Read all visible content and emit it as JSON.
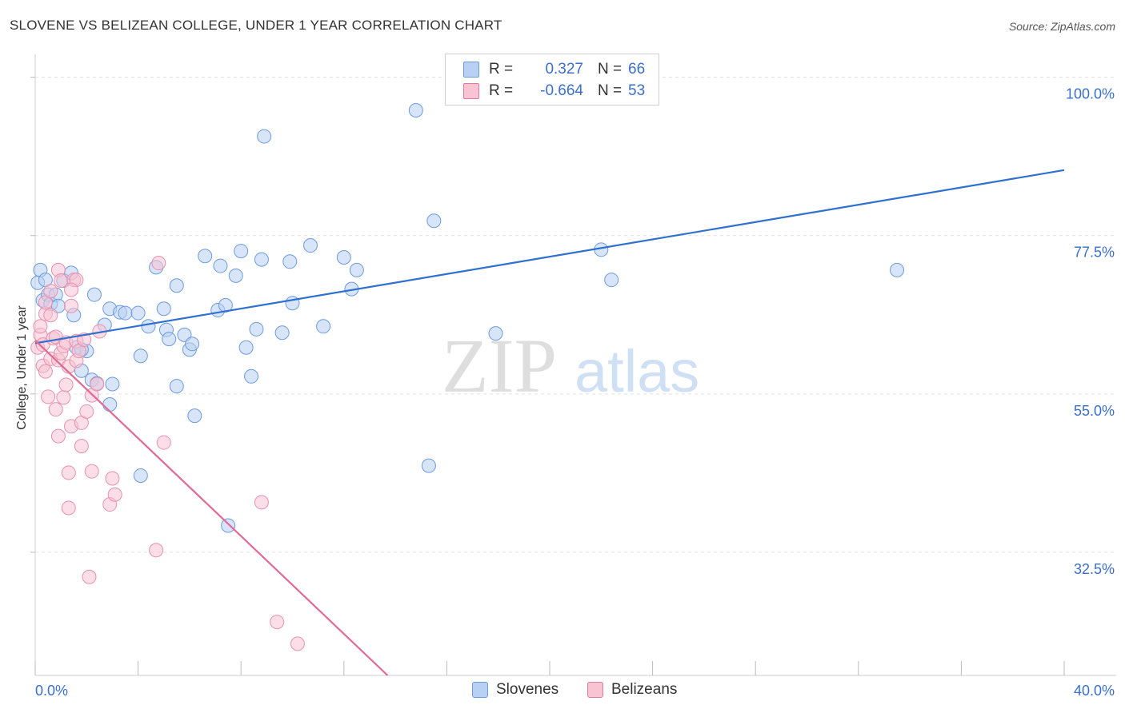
{
  "title": "SLOVENE VS BELIZEAN COLLEGE, UNDER 1 YEAR CORRELATION CHART",
  "source": "Source: ZipAtlas.com",
  "watermark": {
    "zip": "ZIP",
    "atlas": "atlas"
  },
  "legend": {
    "r_label": "R =",
    "n_label": "N =",
    "series": [
      {
        "r": "0.327",
        "n": "66",
        "color": "#6b9be0",
        "fill": "#b8d0f3"
      },
      {
        "r": "-0.664",
        "n": "53",
        "color": "#e07a9c",
        "fill": "#f8c3d3"
      }
    ]
  },
  "bottom_legend": [
    "Slovenes",
    "Belizeans"
  ],
  "chart_data": {
    "type": "scatter",
    "title": "SLOVENE VS BELIZEAN COLLEGE, UNDER 1 YEAR CORRELATION CHART",
    "xlabel": "",
    "ylabel": "College, Under 1 year",
    "xlim": [
      0,
      40
    ],
    "ylim": [
      15,
      102
    ],
    "x_tick_labels": [
      "0.0%",
      "40.0%"
    ],
    "y_ticks": [
      32.5,
      55.0,
      77.5,
      100.0
    ],
    "y_tick_labels": [
      "32.5%",
      "55.0%",
      "77.5%",
      "100.0%"
    ],
    "grid": true,
    "legend_position": "top-center",
    "series": [
      {
        "name": "Slovenes",
        "color": "#5b8fd8",
        "trend": {
          "x": [
            0,
            40
          ],
          "y": [
            62.2,
            86.8
          ]
        },
        "points": [
          [
            0.1,
            70.8
          ],
          [
            0.2,
            72.6
          ],
          [
            0.3,
            68.3
          ],
          [
            0.4,
            71.2
          ],
          [
            0.5,
            69.1
          ],
          [
            0.6,
            67.8
          ],
          [
            0.8,
            69.1
          ],
          [
            0.9,
            67.5
          ],
          [
            1.1,
            71.1
          ],
          [
            1.4,
            72.2
          ],
          [
            1.5,
            66.2
          ],
          [
            1.6,
            61.6
          ],
          [
            1.8,
            58.3
          ],
          [
            2.0,
            61.1
          ],
          [
            2.2,
            57.0
          ],
          [
            2.4,
            56.5
          ],
          [
            2.9,
            67.1
          ],
          [
            2.7,
            64.8
          ],
          [
            2.9,
            53.5
          ],
          [
            3.3,
            66.6
          ],
          [
            3.5,
            66.5
          ],
          [
            4.1,
            60.4
          ],
          [
            4.4,
            64.6
          ],
          [
            4.7,
            73.0
          ],
          [
            5.0,
            67.1
          ],
          [
            5.1,
            64.1
          ],
          [
            5.2,
            62.8
          ],
          [
            5.5,
            56.1
          ],
          [
            5.5,
            70.4
          ],
          [
            5.8,
            63.4
          ],
          [
            6.0,
            61.3
          ],
          [
            6.1,
            62.1
          ],
          [
            6.2,
            51.9
          ],
          [
            6.6,
            74.6
          ],
          [
            7.1,
            66.9
          ],
          [
            7.2,
            73.2
          ],
          [
            7.4,
            67.6
          ],
          [
            7.8,
            71.8
          ],
          [
            8.0,
            75.3
          ],
          [
            8.2,
            61.6
          ],
          [
            8.4,
            57.5
          ],
          [
            8.6,
            64.2
          ],
          [
            8.9,
            91.6
          ],
          [
            8.8,
            74.1
          ],
          [
            9.6,
            63.7
          ],
          [
            9.9,
            73.8
          ],
          [
            10.0,
            67.9
          ],
          [
            10.7,
            76.1
          ],
          [
            11.2,
            64.6
          ],
          [
            12.0,
            74.4
          ],
          [
            12.3,
            69.9
          ],
          [
            12.5,
            72.6
          ],
          [
            14.8,
            95.3
          ],
          [
            15.3,
            44.8
          ],
          [
            15.5,
            79.6
          ],
          [
            17.9,
            63.6
          ],
          [
            22.0,
            75.5
          ],
          [
            22.4,
            71.2
          ],
          [
            33.5,
            72.6
          ],
          [
            22.1,
            102.2
          ],
          [
            4.1,
            43.4
          ],
          [
            7.5,
            36.3
          ],
          [
            1.8,
            61.3
          ],
          [
            3.0,
            56.4
          ],
          [
            4.0,
            66.5
          ],
          [
            2.3,
            69.1
          ]
        ]
      },
      {
        "name": "Belizeans",
        "color": "#e8739a",
        "trend": {
          "x": [
            0,
            13.7
          ],
          "y": [
            62.6,
            15.0
          ]
        },
        "points": [
          [
            0.1,
            61.6
          ],
          [
            0.2,
            63.4
          ],
          [
            0.2,
            64.6
          ],
          [
            0.3,
            62.0
          ],
          [
            0.3,
            59.0
          ],
          [
            0.4,
            58.2
          ],
          [
            0.4,
            66.4
          ],
          [
            0.5,
            54.6
          ],
          [
            0.6,
            66.2
          ],
          [
            0.6,
            60.0
          ],
          [
            0.7,
            62.9
          ],
          [
            0.8,
            63.1
          ],
          [
            0.8,
            52.8
          ],
          [
            0.9,
            49.0
          ],
          [
            0.9,
            59.8
          ],
          [
            0.9,
            72.6
          ],
          [
            1.0,
            60.8
          ],
          [
            1.0,
            71.1
          ],
          [
            1.1,
            54.5
          ],
          [
            1.1,
            61.8
          ],
          [
            1.2,
            62.3
          ],
          [
            1.2,
            56.3
          ],
          [
            1.3,
            43.8
          ],
          [
            1.3,
            58.9
          ],
          [
            1.3,
            38.8
          ],
          [
            1.4,
            50.4
          ],
          [
            1.4,
            67.5
          ],
          [
            1.5,
            71.2
          ],
          [
            1.6,
            62.5
          ],
          [
            1.6,
            71.2
          ],
          [
            1.6,
            59.7
          ],
          [
            1.7,
            61.1
          ],
          [
            1.8,
            50.9
          ],
          [
            1.8,
            47.6
          ],
          [
            1.9,
            62.7
          ],
          [
            2.0,
            52.5
          ],
          [
            2.1,
            29.0
          ],
          [
            2.2,
            44.0
          ],
          [
            2.2,
            54.8
          ],
          [
            2.4,
            56.4
          ],
          [
            2.5,
            63.9
          ],
          [
            2.9,
            39.3
          ],
          [
            3.0,
            43.0
          ],
          [
            3.1,
            40.7
          ],
          [
            4.7,
            32.8
          ],
          [
            4.8,
            73.6
          ],
          [
            5.0,
            48.1
          ],
          [
            8.8,
            39.6
          ],
          [
            9.4,
            22.6
          ],
          [
            10.2,
            19.5
          ],
          [
            0.4,
            68.0
          ],
          [
            0.6,
            69.6
          ],
          [
            1.4,
            69.8
          ]
        ]
      }
    ]
  }
}
